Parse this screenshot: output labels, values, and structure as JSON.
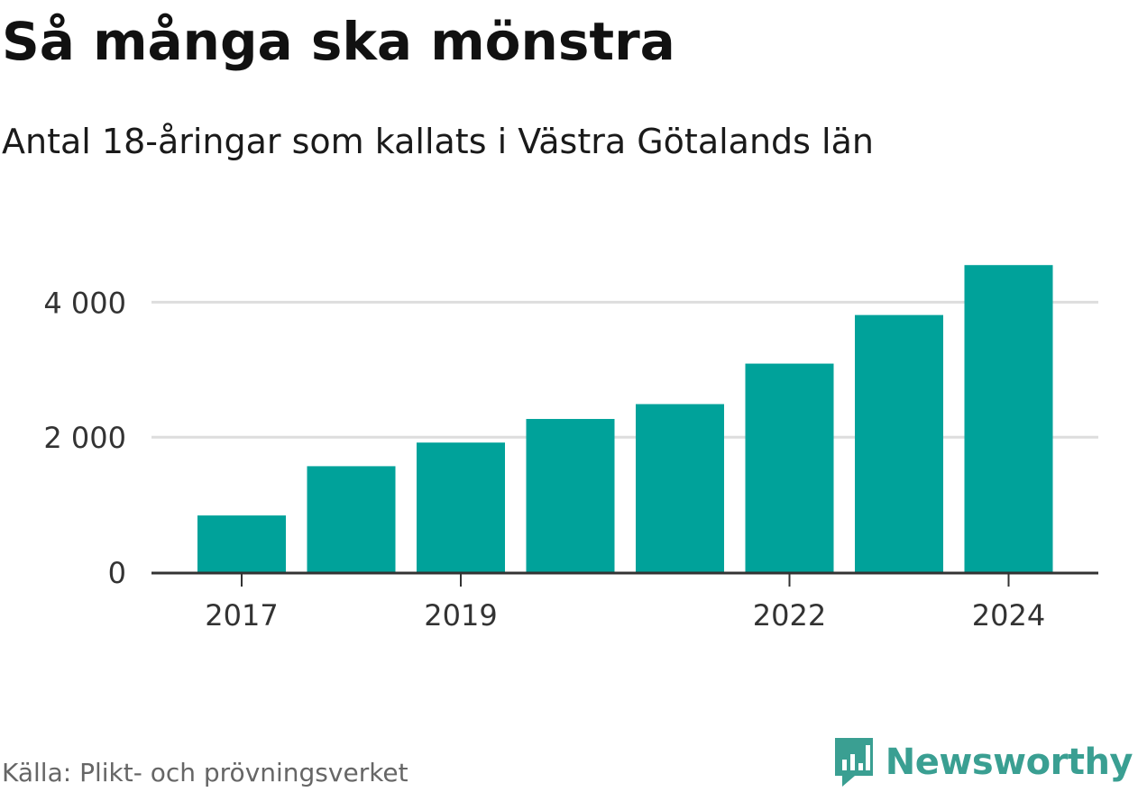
{
  "title": "Så många ska mönstra",
  "subtitle": "Antal 18-åringar som kallats i Västra Götalands län",
  "source": "Källa: Plikt- och prövningsverket",
  "brand": {
    "name": "Newsworthy",
    "icon": "newsworthy-logo-icon",
    "color": "#3a9f92"
  },
  "colors": {
    "bar": "#00a29a",
    "grid": "#dddddd",
    "axis": "#333333"
  },
  "chart_data": {
    "type": "bar",
    "categories": [
      "2017",
      "2018",
      "2019",
      "2020",
      "2021",
      "2022",
      "2023",
      "2024"
    ],
    "values": [
      840,
      1570,
      1920,
      2270,
      2490,
      3090,
      3810,
      4550
    ],
    "title": "Så många ska mönstra",
    "subtitle": "Antal 18-åringar som kallats i Västra Götalands län",
    "xlabel": "",
    "ylabel": "",
    "ylim": [
      0,
      4700
    ],
    "yticks": [
      0,
      2000,
      4000
    ],
    "ytick_labels": [
      "0",
      "2 000",
      "4 000"
    ],
    "xtick_labels": [
      "2017",
      "2019",
      "2022",
      "2024"
    ],
    "grid": true,
    "legend": "none"
  }
}
